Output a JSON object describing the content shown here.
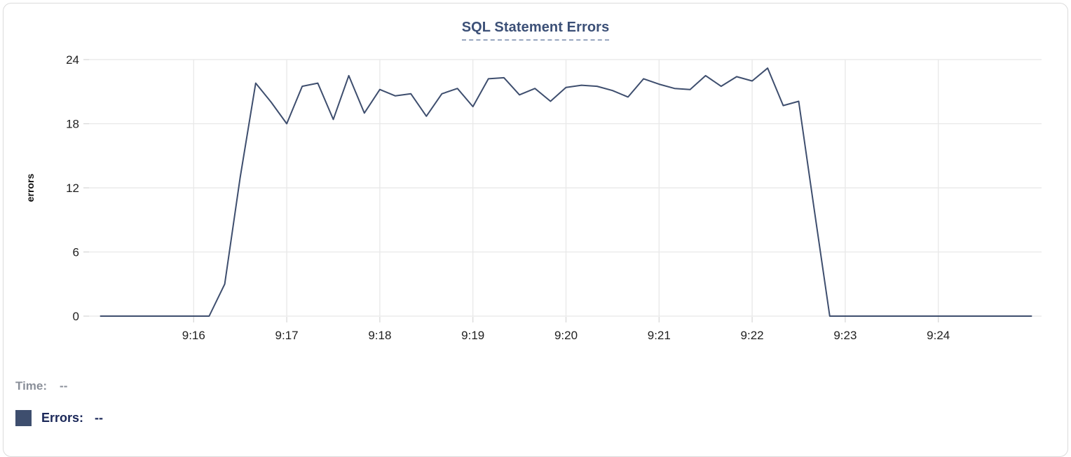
{
  "card_title": "SQL Statement Errors",
  "chart_data": {
    "type": "line",
    "title": "SQL Statement Errors",
    "xlabel": "",
    "ylabel": "errors",
    "y_ticks": [
      0,
      6,
      12,
      18,
      24
    ],
    "ylim": [
      0,
      24
    ],
    "xlim": [
      "9:15:00",
      "9:25:00"
    ],
    "grid": true,
    "x_ticks": [
      {
        "label": "9:16",
        "minute": 1
      },
      {
        "label": "9:17",
        "minute": 2
      },
      {
        "label": "9:18",
        "minute": 3
      },
      {
        "label": "9:19",
        "minute": 4
      },
      {
        "label": "9:20",
        "minute": 5
      },
      {
        "label": "9:21",
        "minute": 6
      },
      {
        "label": "9:22",
        "minute": 7
      },
      {
        "label": "9:23",
        "minute": 8
      },
      {
        "label": "9:24",
        "minute": 9
      }
    ],
    "series": [
      {
        "name": "Errors",
        "color": "#3e4e6e",
        "x_start": "9:15:00",
        "x_step_seconds": 10,
        "values": [
          0,
          0,
          0,
          0,
          0,
          0,
          0,
          0,
          3,
          13,
          21.8,
          20,
          18,
          21.5,
          21.8,
          18.4,
          22.5,
          19,
          21.2,
          20.6,
          20.8,
          18.7,
          20.8,
          21.3,
          19.6,
          22.2,
          22.3,
          20.7,
          21.3,
          20.1,
          21.4,
          21.6,
          21.5,
          21.1,
          20.5,
          22.2,
          21.7,
          21.3,
          21.2,
          22.5,
          21.5,
          22.4,
          22,
          23.2,
          19.7,
          20.1,
          10,
          0,
          0,
          0,
          0,
          0,
          0,
          0,
          0,
          0,
          0,
          0,
          0,
          0,
          0
        ]
      }
    ],
    "legend_position": "bottom"
  },
  "tooltip": {
    "time_label": "Time:",
    "time_value": "--",
    "errors_label": "Errors:",
    "errors_value": "--"
  },
  "colors": {
    "series_line": "#3e4e6e",
    "title_text": "#3c5077",
    "title_underline": "#98a6bf",
    "time_text": "#8a8f99",
    "errors_text": "#1a2758",
    "gridline": "#e8e8e8",
    "tick": "#d8d8d8",
    "axis_text": "#1f1f1f",
    "card_border": "#dbdbdb"
  }
}
